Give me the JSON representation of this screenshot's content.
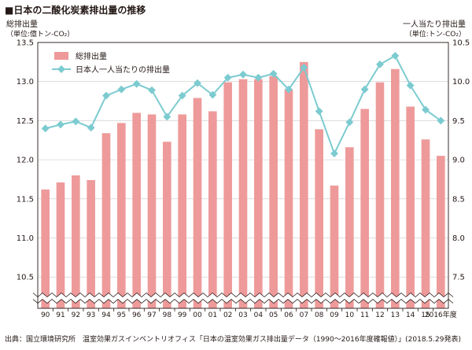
{
  "title": "■日本の二酸化炭素排出量の推移",
  "source": "出典：国立環境研究所　温室効果ガスインベントリオフィス「日本の温室効果ガス排出量データ（1990〜2016年度確報値）」(2018.5.29発表)",
  "chart_data": {
    "type": "bar+line",
    "categories": [
      "90",
      "91",
      "92",
      "93",
      "94",
      "95",
      "96",
      "97",
      "98",
      "99",
      "00",
      "01",
      "02",
      "03",
      "04",
      "05",
      "06",
      "07",
      "08",
      "09",
      "10",
      "11",
      "12",
      "13",
      "14",
      "15",
      "2016年度"
    ],
    "x_suffix": "年度",
    "left_axis": {
      "label_line1": "総排出量",
      "label_line2": "（単位:億トン-CO₂）",
      "ticks": [
        "13.5",
        "13.0",
        "12.5",
        "12.0",
        "11.5",
        "11.0",
        "10.5"
      ],
      "ylim": [
        10.1,
        13.5
      ],
      "axis_break": true
    },
    "right_axis": {
      "label_line1": "一人当たり排出量",
      "label_line2": "（単位:トン-CO₂）",
      "ticks": [
        "10.5",
        "10.0",
        "9.5",
        "9.0",
        "8.5",
        "8.0",
        "7.5"
      ],
      "ylim": [
        7.1,
        10.5
      ]
    },
    "series": [
      {
        "name": "総排出量",
        "kind": "bar",
        "axis": "left",
        "color": "#ee9a9a",
        "values": [
          11.62,
          11.71,
          11.8,
          11.74,
          12.34,
          12.47,
          12.6,
          12.58,
          12.23,
          12.58,
          12.79,
          12.62,
          12.99,
          13.03,
          13.03,
          13.07,
          12.9,
          13.25,
          12.39,
          11.67,
          12.16,
          12.65,
          12.99,
          13.16,
          12.68,
          12.26,
          12.05
        ]
      },
      {
        "name": "日本人一人当たりの排出量",
        "kind": "line",
        "axis": "right",
        "color": "#7ccbd0",
        "values": [
          9.4,
          9.45,
          9.49,
          9.41,
          9.82,
          9.9,
          9.97,
          9.89,
          9.55,
          9.82,
          9.98,
          9.83,
          10.05,
          10.09,
          10.05,
          10.1,
          9.9,
          10.18,
          9.62,
          9.08,
          9.48,
          9.9,
          10.22,
          10.33,
          9.95,
          9.64,
          9.5
        ]
      }
    ],
    "grid": true,
    "legend_position": "top-left"
  }
}
